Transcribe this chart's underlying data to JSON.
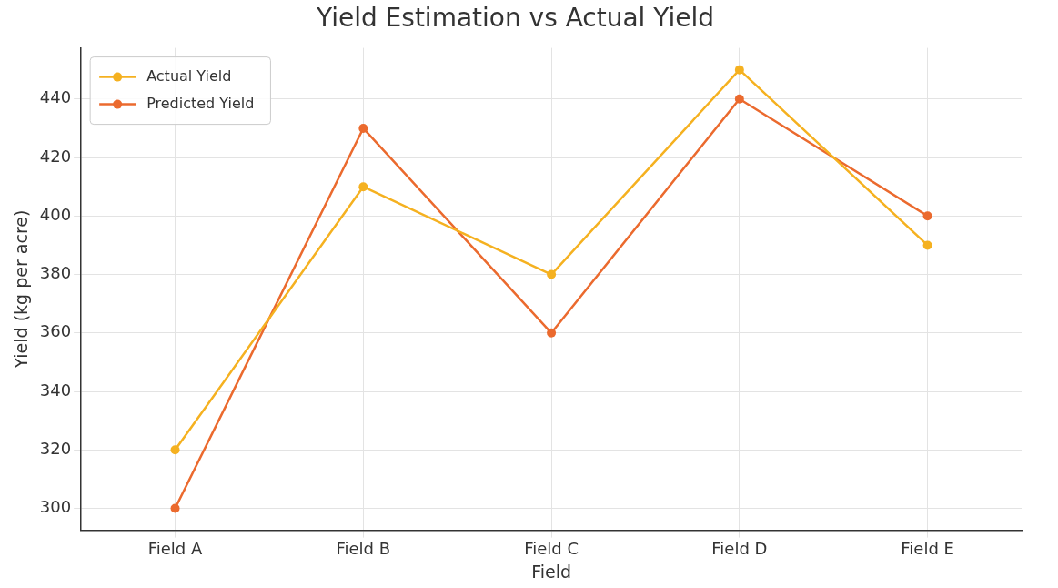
{
  "chart_data": {
    "type": "line",
    "title": "Yield Estimation vs Actual Yield",
    "xlabel": "Field",
    "ylabel": "Yield (kg per acre)",
    "categories": [
      "Field A",
      "Field B",
      "Field C",
      "Field D",
      "Field E"
    ],
    "series": [
      {
        "name": "Actual Yield",
        "color": "#f5b120",
        "values": [
          320,
          410,
          380,
          450,
          390
        ]
      },
      {
        "name": "Predicted Yield",
        "color": "#eb6a2e",
        "values": [
          300,
          430,
          360,
          440,
          400
        ]
      }
    ],
    "ylim": [
      292.5,
      457.5
    ],
    "yticks": [
      300,
      320,
      340,
      360,
      380,
      400,
      420,
      440
    ],
    "grid": true,
    "legend": "top left",
    "marker": "circle",
    "line_style": "solid"
  }
}
